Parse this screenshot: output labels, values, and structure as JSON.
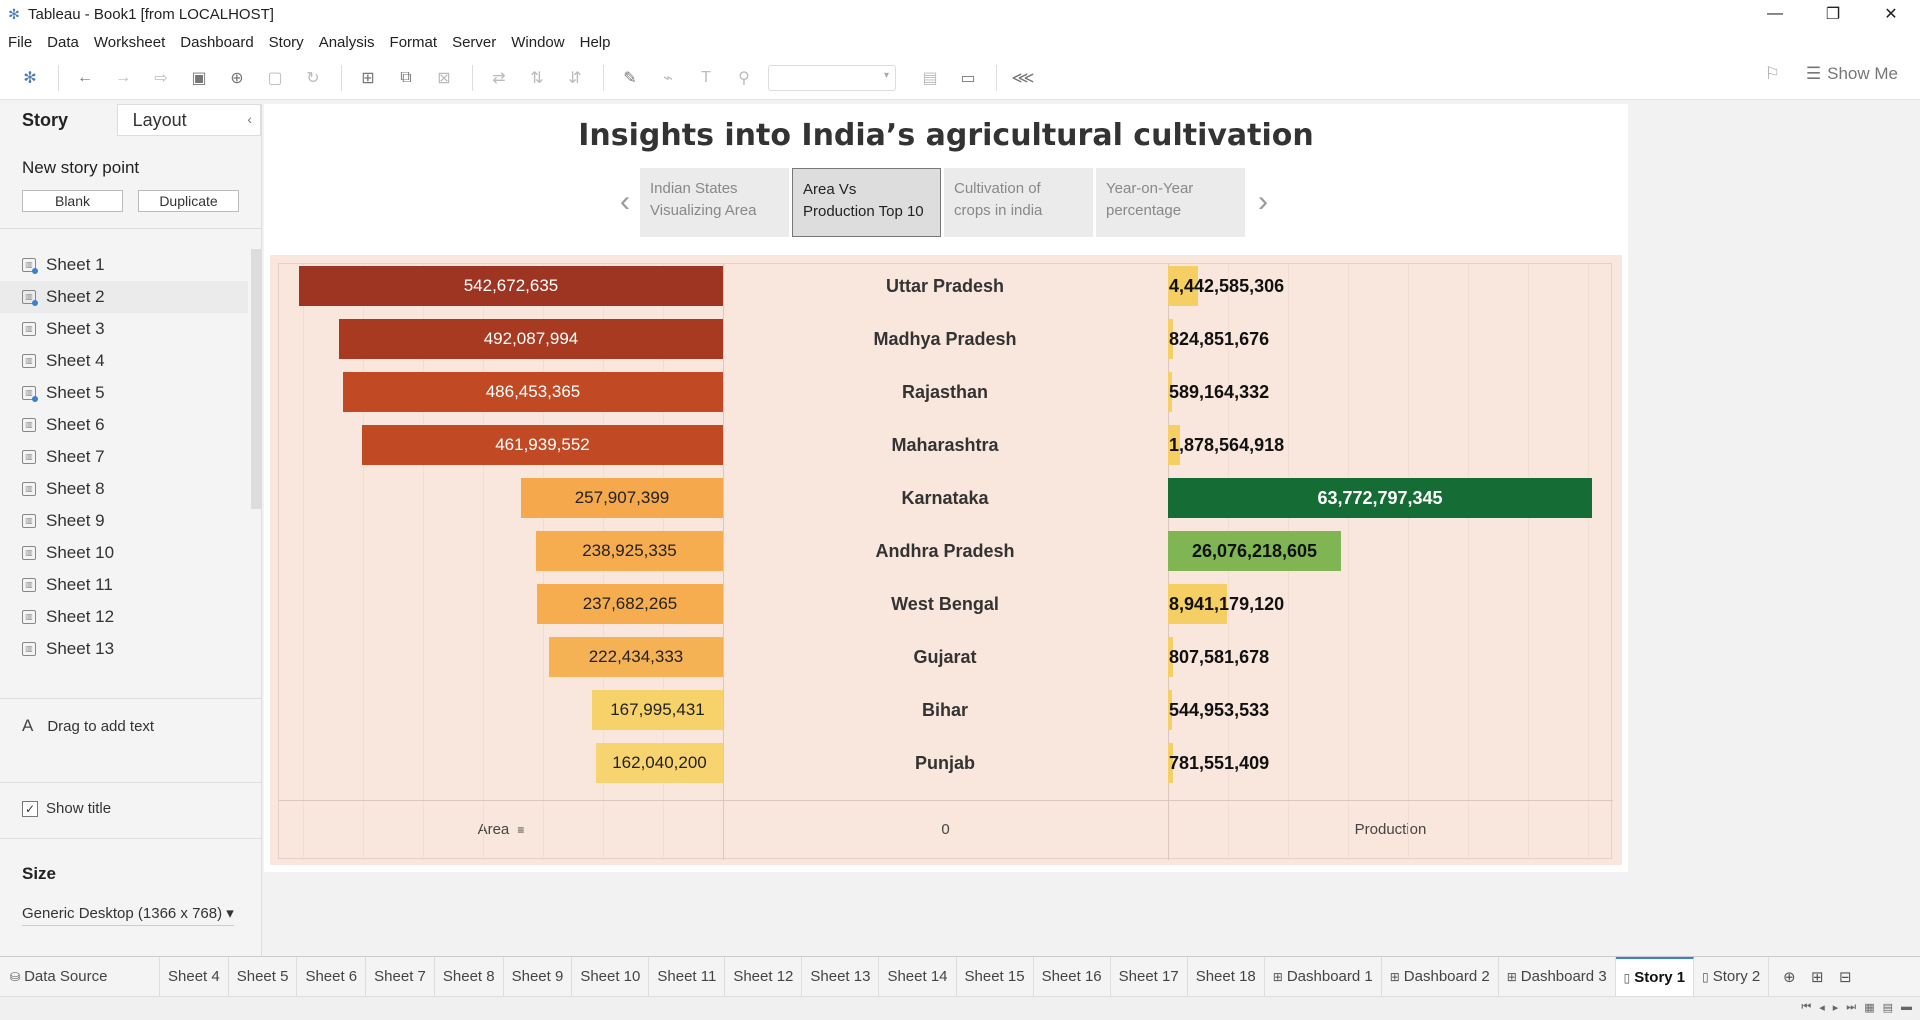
{
  "window": {
    "title": "Tableau - Book1 [from LOCALHOST]",
    "minimize": "—",
    "restore": "❐",
    "close": "✕"
  },
  "menu": [
    "File",
    "Data",
    "Worksheet",
    "Dashboard",
    "Story",
    "Analysis",
    "Format",
    "Server",
    "Window",
    "Help"
  ],
  "toolbar": {
    "show_me": "Show Me"
  },
  "left_pane": {
    "tab_story": "Story",
    "tab_layout": "Layout",
    "collapse": "‹",
    "new_story_point": "New story point",
    "blank_button": "Blank",
    "duplicate_button": "Duplicate",
    "sheets": [
      "Sheet 1",
      "Sheet 2",
      "Sheet 3",
      "Sheet 4",
      "Sheet 5",
      "Sheet 6",
      "Sheet 7",
      "Sheet 8",
      "Sheet 9",
      "Sheet 10",
      "Sheet 11",
      "Sheet 12",
      "Sheet 13"
    ],
    "drag_text": "Drag to add text",
    "drag_text_icon": "A",
    "show_title": "Show title",
    "show_title_checked": "✓",
    "size_heading": "Size",
    "size_value": "Generic Desktop (1366 x 768) ▾"
  },
  "story": {
    "title": "Insights into India’s agricultural cultivation",
    "prev_arrow": "‹",
    "next_arrow": "›",
    "points": [
      {
        "line1": "Indian States",
        "line2": "Visualizing Area"
      },
      {
        "line1": "Area Vs",
        "line2": "Production Top 10"
      },
      {
        "line1": "Cultivation of",
        "line2": "crops in india"
      },
      {
        "line1": "Year-on-Year",
        "line2": "percentage"
      }
    ],
    "active_point": 1
  },
  "chart_data": {
    "type": "bar",
    "categories": [
      "Uttar Pradesh",
      "Madhya Pradesh",
      "Rajasthan",
      "Maharashtra",
      "Karnataka",
      "Andhra Pradesh",
      "West Bengal",
      "Gujarat",
      "Bihar",
      "Punjab"
    ],
    "series": [
      {
        "name": "Area",
        "values": [
          542672635,
          492087994,
          486453365,
          461939552,
          257907399,
          238925335,
          237682265,
          222434333,
          167995431,
          162040200
        ],
        "labels": [
          "542,672,635",
          "492,087,994",
          "486,453,365",
          "461,939,552",
          "257,907,399",
          "238,925,335",
          "237,682,265",
          "222,434,333",
          "167,995,431",
          "162,040,200"
        ],
        "colors": [
          "#9e3523",
          "#a83a22",
          "#c14a25",
          "#c14a25",
          "#f5a94c",
          "#f5ad4f",
          "#f5ad4f",
          "#f5b255",
          "#f7d26a",
          "#f7d470"
        ]
      },
      {
        "name": "Production",
        "values": [
          4442585306,
          824851676,
          589164332,
          1878564918,
          63772797345,
          26076218605,
          8941179120,
          807581678,
          544953533,
          781551409
        ],
        "labels": [
          "4,442,585,306",
          "824,851,676",
          "589,164,332",
          "1,878,564,918",
          "63,772,797,345",
          "26,076,218,605",
          "8,941,179,120",
          "807,581,678",
          "544,953,533",
          "781,551,409"
        ],
        "colors": [
          "#f5cf63",
          "#f5cf63",
          "#f5cf63",
          "#f5cf63",
          "#156c35",
          "#7fb553",
          "#f5cf63",
          "#f5cf63",
          "#f5cf63",
          "#f5cf63"
        ]
      }
    ],
    "area_max": 542672635,
    "production_max": 63772797345,
    "axis_labels": {
      "left": "Area",
      "left_sort_icon": "≡",
      "middle": "0",
      "right": "Production"
    }
  },
  "tabs": {
    "data_source": "Data Source",
    "items": [
      "Sheet 4",
      "Sheet 5",
      "Sheet 6",
      "Sheet 7",
      "Sheet 8",
      "Sheet 9",
      "Sheet 10",
      "Sheet 11",
      "Sheet 12",
      "Sheet 13",
      "Sheet 14",
      "Sheet 15",
      "Sheet 16",
      "Sheet 17",
      "Sheet 18",
      "Dashboard 1",
      "Dashboard 2",
      "Dashboard 3",
      "Story 1",
      "Story 2"
    ],
    "active": "Story 1"
  }
}
